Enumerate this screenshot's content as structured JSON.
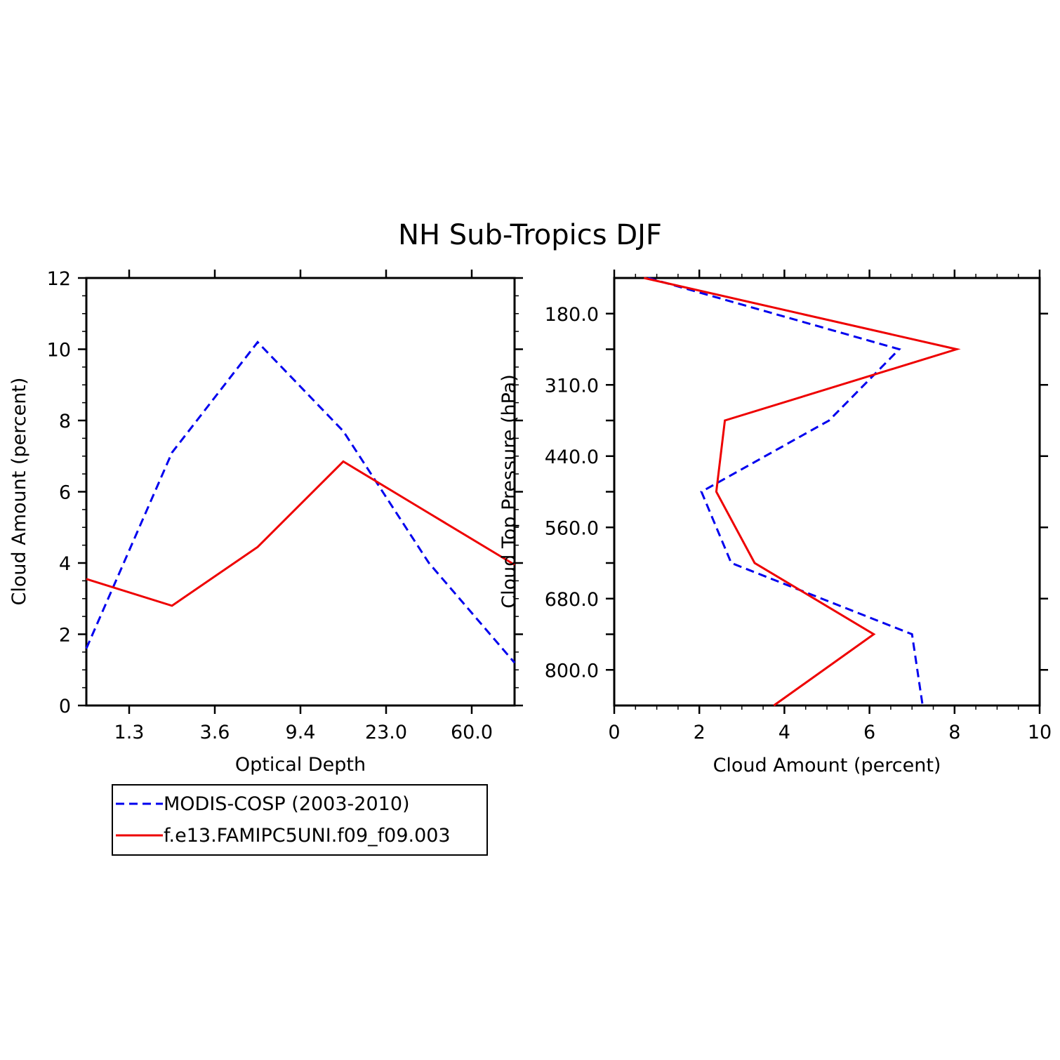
{
  "title": "NH Sub-Tropics DJF",
  "chart_data": [
    {
      "type": "line",
      "xlabel": "Optical Depth",
      "ylabel": "Cloud Amount (percent)",
      "ylim": [
        0,
        12
      ],
      "yticks": [
        "0",
        "2",
        "4",
        "6",
        "8",
        "10",
        "12"
      ],
      "xtick_labels": [
        "1.3",
        "3.6",
        "9.4",
        "23.0",
        "60.0"
      ],
      "bins": [
        1,
        2,
        3,
        4,
        5,
        6
      ],
      "series": [
        {
          "name": "MODIS-COSP (2003-2010)",
          "color": "#0000ee",
          "dash": true,
          "values": [
            1.6,
            7.1,
            10.2,
            7.7,
            4.0,
            1.2
          ]
        },
        {
          "name": "f.e13.FAMIPC5UNI.f09_f09.003",
          "color": "#ee0000",
          "dash": false,
          "values": [
            3.55,
            2.8,
            4.45,
            6.85,
            5.4,
            3.95
          ]
        }
      ]
    },
    {
      "type": "line",
      "orientation": "vertical",
      "xlabel": "Cloud Amount (percent)",
      "ylabel": "Cloud Top Pressure (hPa)",
      "xlim": [
        0,
        10
      ],
      "xticks": [
        "0",
        "2",
        "4",
        "6",
        "8",
        "10"
      ],
      "ytick_labels": [
        "180.0",
        "310.0",
        "440.0",
        "560.0",
        "680.0",
        "800.0"
      ],
      "levels": [
        1,
        2,
        3,
        4,
        5,
        6,
        7
      ],
      "series": [
        {
          "name": "MODIS-COSP (2003-2010)",
          "color": "#0000ee",
          "dash": true,
          "values": [
            0.8,
            6.7,
            5.05,
            2.05,
            2.75,
            7.0,
            7.25
          ]
        },
        {
          "name": "f.e13.FAMIPC5UNI.f09_f09.003",
          "color": "#ee0000",
          "dash": false,
          "values": [
            0.7,
            8.05,
            2.6,
            2.4,
            3.3,
            6.1,
            3.75
          ]
        }
      ]
    }
  ],
  "legend": [
    {
      "label": "MODIS-COSP (2003-2010)",
      "color": "#0000ee",
      "dash": true
    },
    {
      "label": "f.e13.FAMIPC5UNI.f09_f09.003",
      "color": "#ee0000",
      "dash": false
    }
  ]
}
